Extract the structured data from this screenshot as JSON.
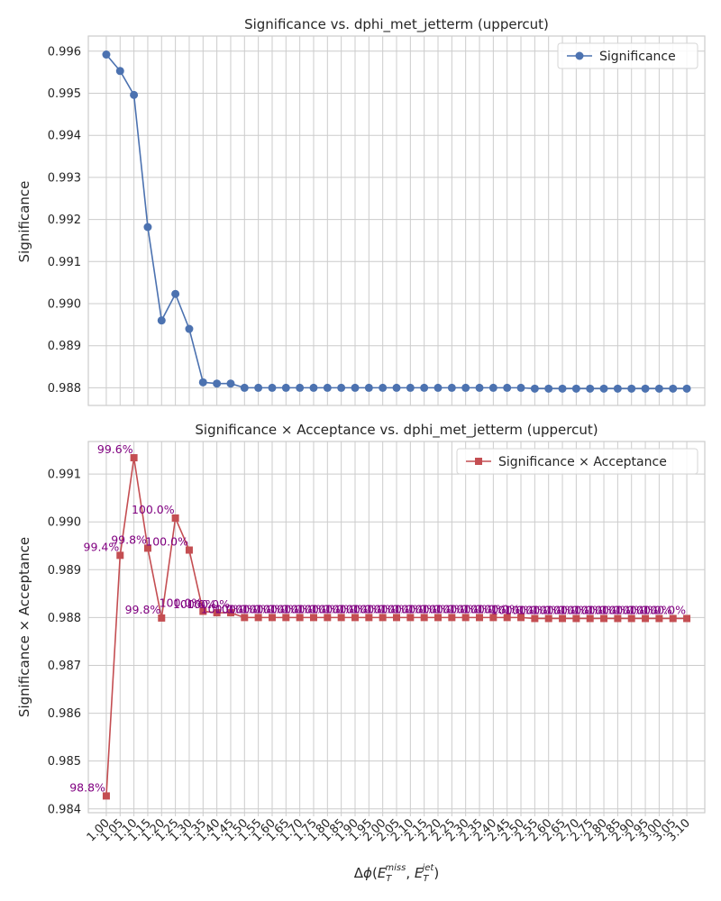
{
  "x_tick_labels": [
    "1.00",
    "1.05",
    "1.10",
    "1.15",
    "1.20",
    "1.25",
    "1.30",
    "1.35",
    "1.40",
    "1.45",
    "1.50",
    "1.55",
    "1.60",
    "1.65",
    "1.70",
    "1.75",
    "1.80",
    "1.85",
    "1.90",
    "1.95",
    "2.00",
    "2.05",
    "2.10",
    "2.15",
    "2.20",
    "2.25",
    "2.30",
    "2.35",
    "2.40",
    "2.45",
    "2.50",
    "2.55",
    "2.60",
    "2.65",
    "2.70",
    "2.75",
    "2.80",
    "2.85",
    "2.90",
    "2.95",
    "3.00",
    "3.05",
    "3.10"
  ],
  "chart_data": [
    {
      "type": "line",
      "title": "Significance vs. dphi_met_jetterm (uppercut)",
      "xlabel": "",
      "ylabel": "Significance",
      "ylim": [
        0.98758,
        0.99636
      ],
      "yticks": [
        "0.988",
        "0.989",
        "0.990",
        "0.991",
        "0.992",
        "0.993",
        "0.994",
        "0.995",
        "0.996"
      ],
      "grid": true,
      "legend_position": "top-right",
      "marker": "circle",
      "color": "#4c72b0",
      "x": [
        1.0,
        1.05,
        1.1,
        1.15,
        1.2,
        1.25,
        1.3,
        1.35,
        1.4,
        1.45,
        1.5,
        1.55,
        1.6,
        1.65,
        1.7,
        1.75,
        1.8,
        1.85,
        1.9,
        1.95,
        2.0,
        2.05,
        2.1,
        2.15,
        2.2,
        2.25,
        2.3,
        2.35,
        2.4,
        2.45,
        2.5,
        2.55,
        2.6,
        2.65,
        2.7,
        2.75,
        2.8,
        2.85,
        2.9,
        2.95,
        3.0,
        3.05,
        3.1
      ],
      "series": [
        {
          "name": "Significance",
          "values": [
            0.99592,
            0.99553,
            0.99496,
            0.99182,
            0.9896,
            0.99023,
            0.9894,
            0.98813,
            0.9881,
            0.9881,
            0.988,
            0.988,
            0.988,
            0.988,
            0.988,
            0.988,
            0.988,
            0.988,
            0.988,
            0.988,
            0.988,
            0.988,
            0.988,
            0.988,
            0.988,
            0.988,
            0.988,
            0.988,
            0.988,
            0.988,
            0.988,
            0.98798,
            0.98798,
            0.98798,
            0.98798,
            0.98798,
            0.98798,
            0.98798,
            0.98798,
            0.98798,
            0.98798,
            0.98798,
            0.98798
          ]
        }
      ]
    },
    {
      "type": "line",
      "title": "Significance × Acceptance vs. dphi_met_jetterm (uppercut)",
      "xlabel": "Δϕ(E_T^miss, E_T^jet)",
      "ylabel": "Significance × Acceptance",
      "ylim": [
        0.98392,
        0.99168
      ],
      "yticks": [
        "0.984",
        "0.985",
        "0.986",
        "0.987",
        "0.988",
        "0.989",
        "0.990",
        "0.991"
      ],
      "grid": true,
      "legend_position": "top-right",
      "marker": "square",
      "color": "#c44e52",
      "x": [
        1.0,
        1.05,
        1.1,
        1.15,
        1.2,
        1.25,
        1.3,
        1.35,
        1.4,
        1.45,
        1.5,
        1.55,
        1.6,
        1.65,
        1.7,
        1.75,
        1.8,
        1.85,
        1.9,
        1.95,
        2.0,
        2.05,
        2.1,
        2.15,
        2.2,
        2.25,
        2.3,
        2.35,
        2.4,
        2.45,
        2.5,
        2.55,
        2.6,
        2.65,
        2.7,
        2.75,
        2.8,
        2.85,
        2.9,
        2.95,
        3.0,
        3.05,
        3.1
      ],
      "series": [
        {
          "name": "Significance × Acceptance",
          "values": [
            0.98427,
            0.9893,
            0.99134,
            0.98945,
            0.98799,
            0.99008,
            0.98941,
            0.98813,
            0.9881,
            0.9881,
            0.988,
            0.988,
            0.988,
            0.988,
            0.988,
            0.988,
            0.988,
            0.988,
            0.988,
            0.988,
            0.988,
            0.988,
            0.988,
            0.988,
            0.988,
            0.988,
            0.988,
            0.988,
            0.988,
            0.988,
            0.988,
            0.98798,
            0.98798,
            0.98798,
            0.98798,
            0.98798,
            0.98798,
            0.98798,
            0.98798,
            0.98798,
            0.98798,
            0.98798,
            0.98798
          ]
        }
      ],
      "annotations": [
        "98.8%",
        "99.4%",
        "99.6%",
        "99.8%",
        "99.8%",
        "100.0%",
        "100.0%",
        "100.0%",
        "100.0%",
        "100.0%",
        "100.0%",
        "100.0%",
        "100.0%",
        "100.0%",
        "100.0%",
        "100.0%",
        "100.0%",
        "100.0%",
        "100.0%",
        "100.0%",
        "100.0%",
        "100.0%",
        "100.0%",
        "100.0%",
        "100.0%",
        "100.0%",
        "100.0%",
        "100.0%",
        "100.0%",
        "100.0%",
        "100.0%",
        "100.0%",
        "100.0%",
        "100.0%",
        "100.0%",
        "100.0%",
        "100.0%",
        "100.0%",
        "100.0%",
        "100.0%",
        "100.0%",
        "100.0%",
        "100.0%"
      ]
    }
  ]
}
